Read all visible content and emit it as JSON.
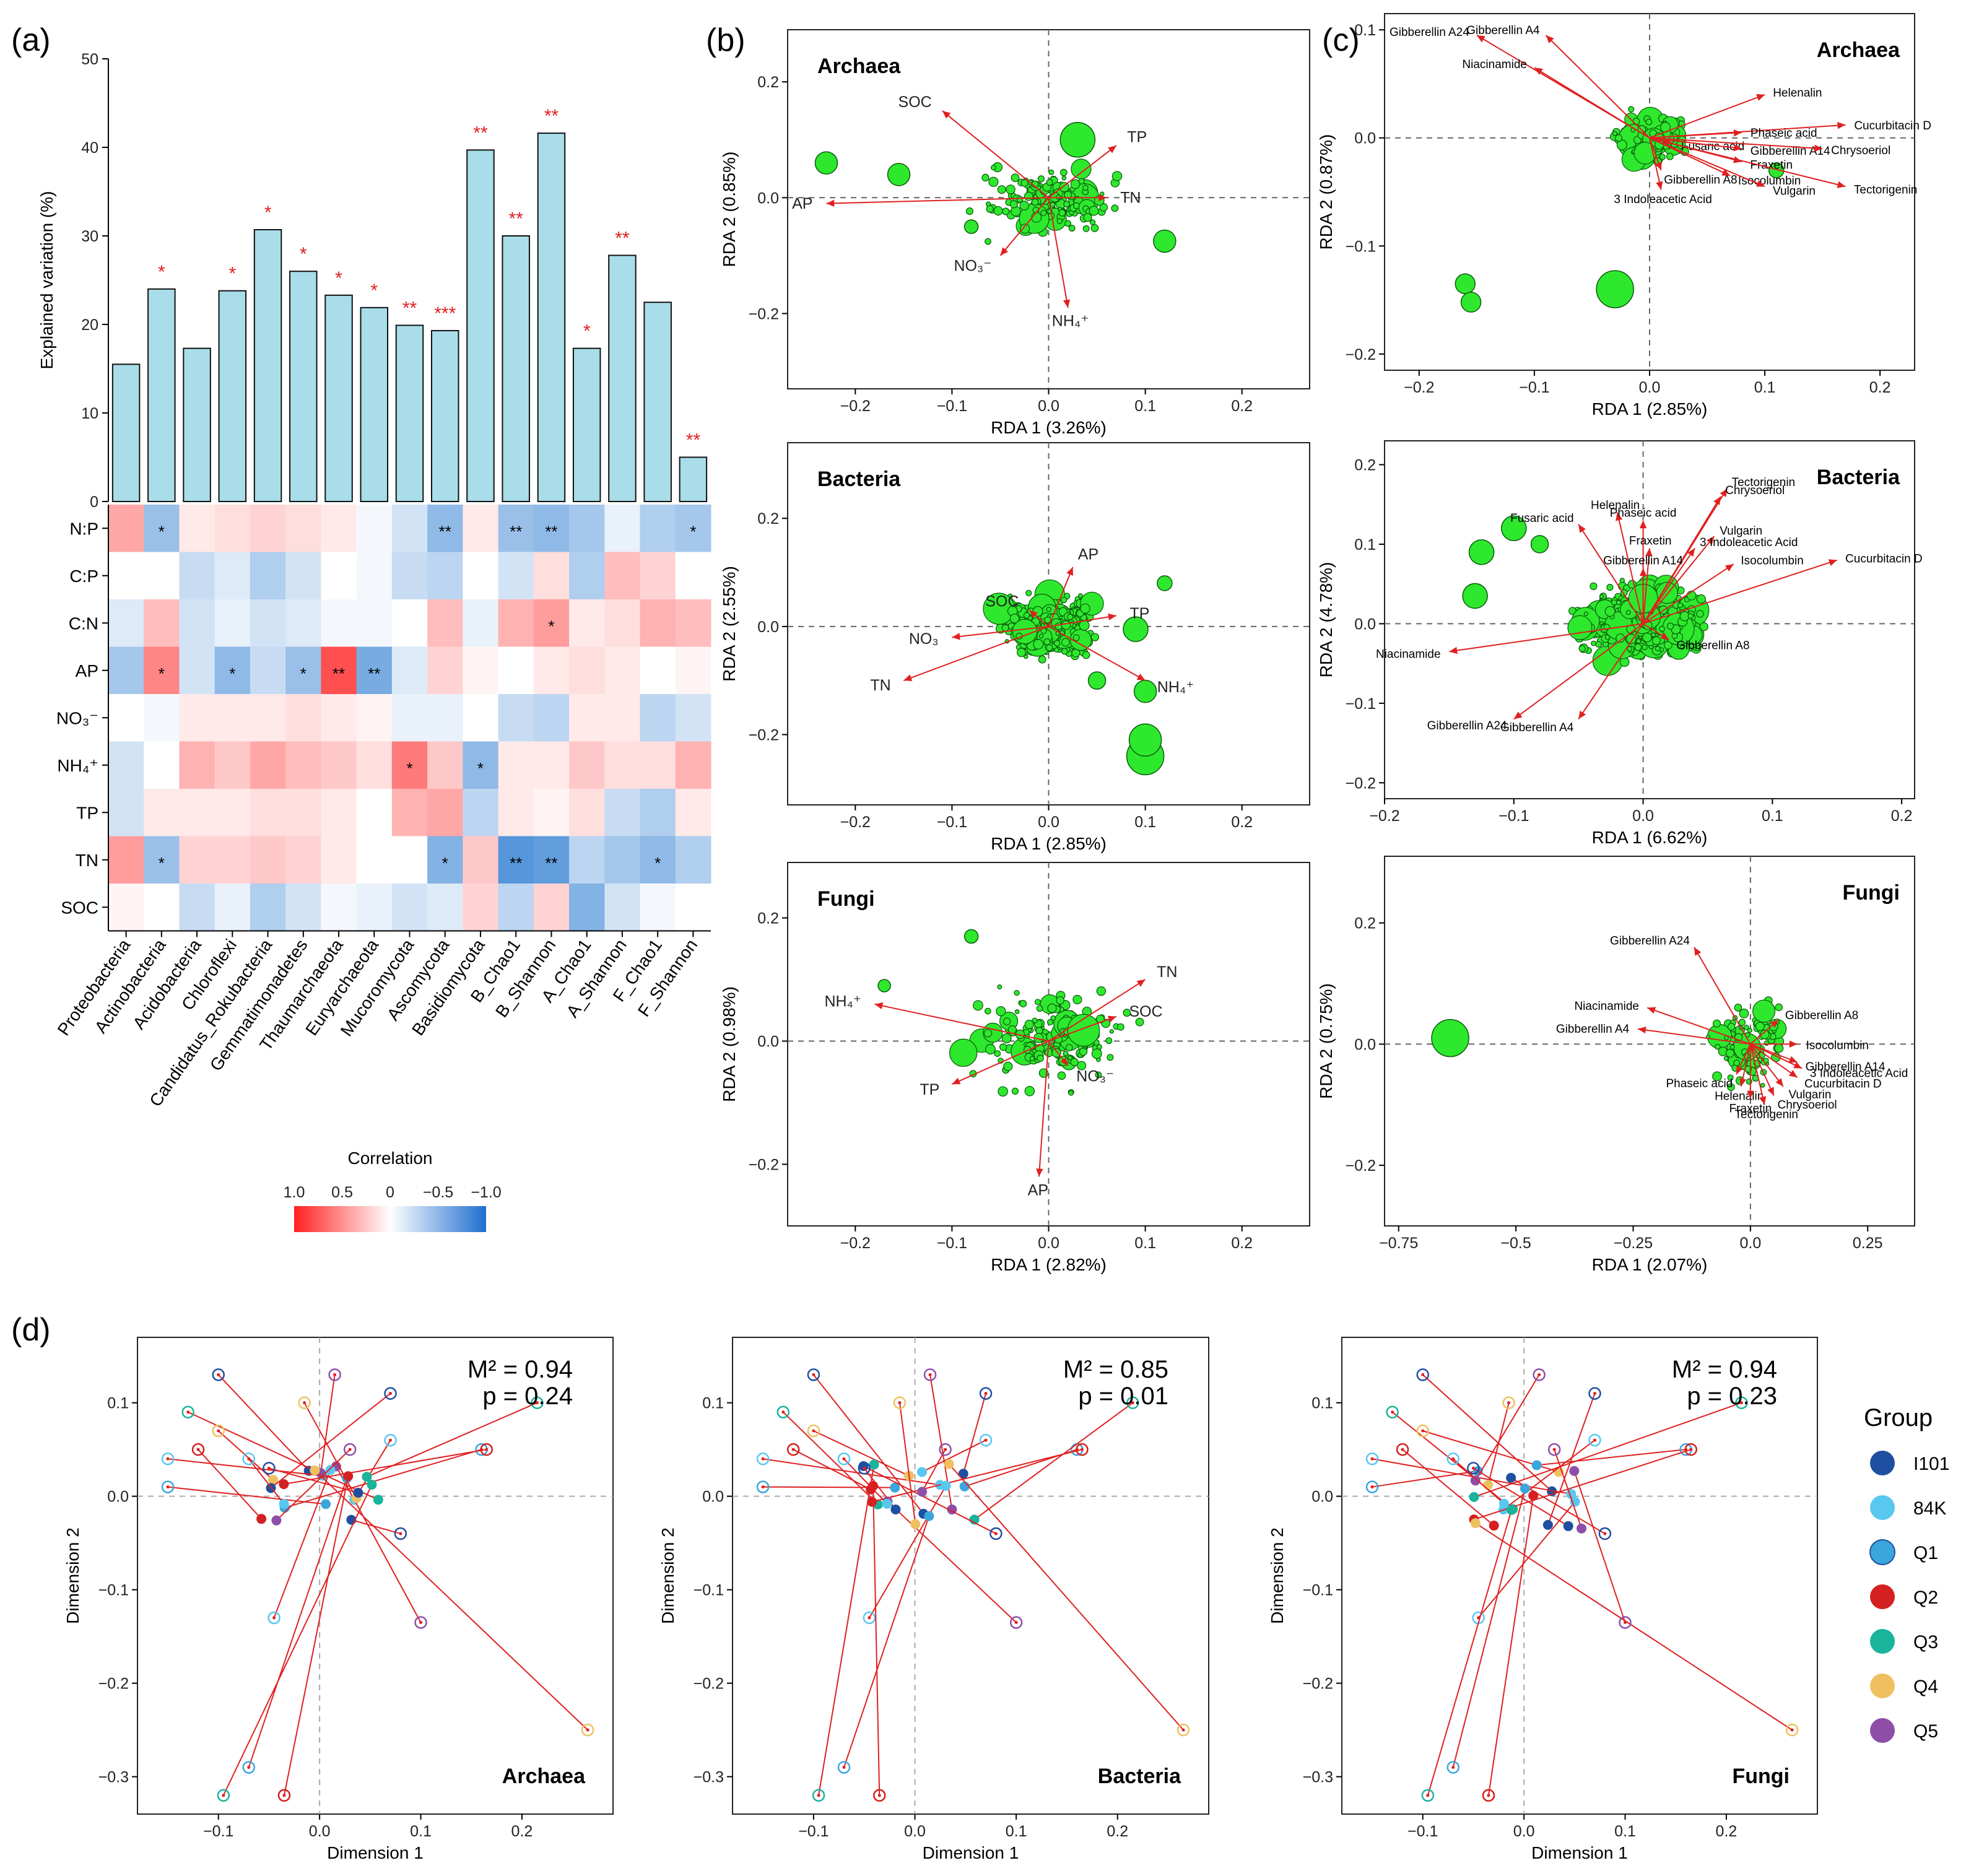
{
  "panel_labels": [
    "(a)",
    "(b)",
    "(c)",
    "(d)"
  ],
  "chart_data": [
    {
      "id": "a_bar",
      "type": "bar",
      "ylabel": "Explained variation (%)",
      "ylim": [
        0,
        50
      ],
      "yticks": [
        0,
        10,
        20,
        30,
        40,
        50
      ],
      "categories": [
        "Proteobacteria",
        "Actinobacteria",
        "Acidobacteria",
        "Chloroflexi",
        "Candidatus_Rokubacteria",
        "Gemmatimonadetes",
        "Thaumarchaeota",
        "Euryarchaeota",
        "Mucoromycota",
        "Ascomycota",
        "Basidiomycota",
        "B_Chao1",
        "B_Shannon",
        "A_Chao1",
        "A_Shannon",
        "F_Chao1",
        "F_Shannon"
      ],
      "values": [
        15.5,
        24,
        17.3,
        23.8,
        30.7,
        26,
        23.3,
        21.9,
        19.9,
        19.3,
        39.7,
        30,
        41.6,
        17.3,
        27.8,
        22.5,
        5
      ],
      "significance": [
        "",
        "*",
        "",
        "*",
        "*",
        "*",
        "*",
        "*",
        "**",
        "***",
        "**",
        "**",
        "**",
        "*",
        "**",
        "",
        "**"
      ]
    },
    {
      "id": "a_heatmap",
      "type": "heatmap",
      "rows": [
        "N:P",
        "C:P",
        "C:N",
        "AP",
        "NO₃⁻",
        "NH₄⁺",
        "TP",
        "TN",
        "SOC"
      ],
      "columns": [
        "Proteobacteria",
        "Actinobacteria",
        "Acidobacteria",
        "Chloroflexi",
        "Candidatus_Rokubacteria",
        "Gemmatimonadetes",
        "Thaumarchaeota",
        "Euryarchaeota",
        "Mucoromycota",
        "Ascomycota",
        "Basidiomycota",
        "B_Chao1",
        "B_Shannon",
        "A_Chao1",
        "A_Shannon",
        "F_Chao1",
        "F_Shannon"
      ],
      "values": [
        [
          0.4,
          -0.45,
          0.1,
          0.15,
          0.2,
          0.15,
          0.1,
          -0.05,
          -0.2,
          -0.5,
          0.1,
          -0.45,
          -0.5,
          -0.4,
          -0.1,
          -0.35,
          -0.4
        ],
        [
          0.0,
          0.0,
          -0.25,
          -0.15,
          -0.35,
          -0.2,
          0.0,
          -0.05,
          -0.25,
          -0.3,
          0.0,
          -0.2,
          0.15,
          -0.35,
          0.3,
          0.2,
          0.0
        ],
        [
          -0.15,
          0.3,
          -0.2,
          -0.1,
          -0.2,
          -0.15,
          -0.05,
          -0.05,
          0.0,
          0.3,
          -0.1,
          0.35,
          0.45,
          0.1,
          0.15,
          0.35,
          0.3
        ],
        [
          -0.4,
          0.55,
          -0.2,
          -0.5,
          -0.25,
          -0.45,
          0.8,
          -0.6,
          -0.15,
          0.2,
          0.05,
          0.0,
          0.1,
          0.15,
          0.1,
          0.0,
          0.05
        ],
        [
          0.0,
          -0.05,
          0.1,
          0.1,
          0.1,
          0.15,
          0.1,
          0.05,
          -0.1,
          -0.1,
          0.0,
          -0.25,
          -0.3,
          0.1,
          0.1,
          -0.3,
          -0.2
        ],
        [
          -0.2,
          0.0,
          0.35,
          0.25,
          0.4,
          0.3,
          0.25,
          0.15,
          0.6,
          0.25,
          -0.5,
          0.1,
          0.1,
          0.25,
          0.15,
          0.15,
          0.35
        ],
        [
          -0.2,
          0.1,
          0.1,
          0.1,
          0.15,
          0.15,
          0.1,
          0.0,
          0.35,
          0.4,
          -0.3,
          0.1,
          0.05,
          0.15,
          -0.25,
          -0.35,
          0.1
        ],
        [
          0.45,
          -0.45,
          0.2,
          0.2,
          0.25,
          0.2,
          0.1,
          0.0,
          0.0,
          -0.55,
          0.25,
          -0.75,
          -0.7,
          -0.3,
          -0.4,
          -0.5,
          -0.35
        ],
        [
          0.05,
          0.0,
          -0.25,
          -0.1,
          -0.35,
          -0.2,
          -0.05,
          -0.1,
          -0.2,
          -0.15,
          0.2,
          -0.3,
          0.2,
          -0.55,
          -0.2,
          -0.05,
          0.0
        ]
      ],
      "significance": [
        [
          "",
          "*",
          "",
          "",
          "",
          "",
          "",
          "",
          "",
          "**",
          "",
          "**",
          "**",
          "",
          "",
          "",
          "*"
        ],
        [
          "",
          "",
          "",
          "",
          "",
          "",
          "",
          "",
          "",
          "",
          "",
          "",
          "",
          "",
          "",
          "",
          ""
        ],
        [
          "",
          "",
          "",
          "",
          "",
          "",
          "",
          "",
          "",
          "",
          "",
          "",
          "*",
          "",
          "",
          "",
          ""
        ],
        [
          "",
          "*",
          "",
          "*",
          "",
          "*",
          "**",
          "**",
          "",
          "",
          "",
          "",
          "",
          "",
          "",
          "",
          ""
        ],
        [
          "",
          "",
          "",
          "",
          "",
          "",
          "",
          "",
          "",
          "",
          "",
          "",
          "",
          "",
          "",
          "",
          ""
        ],
        [
          "",
          "",
          "",
          "",
          "",
          "",
          "",
          "",
          "*",
          "",
          "*",
          "",
          "",
          "",
          "",
          "",
          ""
        ],
        [
          "",
          "",
          "",
          "",
          "",
          "",
          "",
          "",
          "",
          "",
          "",
          "",
          "",
          "",
          "",
          "",
          ""
        ],
        [
          "",
          "*",
          "",
          "",
          "",
          "",
          "",
          "",
          "",
          "*",
          "",
          "**",
          "**",
          "",
          "",
          "*",
          ""
        ],
        [
          "",
          "",
          "",
          "",
          "",
          "",
          "",
          "",
          "",
          "",
          "",
          "",
          "",
          "",
          "",
          "",
          ""
        ]
      ],
      "legend_title": "Correlation",
      "legend_ticks": [
        "1.0",
        "0.5",
        "0",
        "−0.5",
        "−1.0"
      ],
      "colors": [
        "#ff2020",
        "#ffffff",
        "#1f6fd0"
      ]
    },
    {
      "id": "b1",
      "type": "scatter",
      "title": "Archaea",
      "xlabel": "RDA 1 (3.26%)",
      "ylabel": "RDA 2 (0.85%)",
      "xlim": [
        -0.27,
        0.27
      ],
      "ylim": [
        -0.33,
        0.29
      ],
      "xticks": [
        -0.2,
        -0.1,
        0.0,
        0.1,
        0.2
      ],
      "yticks": [
        -0.2,
        0.0,
        0.2
      ],
      "vectors": [
        {
          "name": "SOC",
          "x": -0.11,
          "y": 0.15
        },
        {
          "name": "TP",
          "x": 0.07,
          "y": 0.09
        },
        {
          "name": "AP",
          "x": -0.23,
          "y": -0.01
        },
        {
          "name": "TN",
          "x": 0.06,
          "y": 0.0
        },
        {
          "name": "NO₃⁻",
          "x": -0.05,
          "y": -0.1
        },
        {
          "name": "NH₄⁺",
          "x": 0.02,
          "y": -0.19
        }
      ]
    },
    {
      "id": "b2",
      "type": "scatter",
      "title": "Bacteria",
      "xlabel": "RDA 1 (2.85%)",
      "ylabel": "RDA 2 (2.55%)",
      "xlim": [
        -0.27,
        0.27
      ],
      "ylim": [
        -0.33,
        0.34
      ],
      "xticks": [
        -0.2,
        -0.1,
        0.0,
        0.1,
        0.2
      ],
      "yticks": [
        -0.2,
        0.0,
        0.2
      ],
      "vectors": [
        {
          "name": "AP",
          "x": 0.025,
          "y": 0.11
        },
        {
          "name": "SOC",
          "x": -0.02,
          "y": 0.03
        },
        {
          "name": "TP",
          "x": 0.07,
          "y": 0.02
        },
        {
          "name": "NO₃",
          "x": -0.1,
          "y": -0.02
        },
        {
          "name": "TN",
          "x": -0.15,
          "y": -0.1
        },
        {
          "name": "NH₄⁺",
          "x": 0.1,
          "y": -0.1
        }
      ]
    },
    {
      "id": "b3",
      "type": "scatter",
      "title": "Fungi",
      "xlabel": "RDA 1 (2.82%)",
      "ylabel": "RDA 2 (0.98%)",
      "xlim": [
        -0.27,
        0.27
      ],
      "ylim": [
        -0.3,
        0.29
      ],
      "xticks": [
        -0.2,
        -0.1,
        0.0,
        0.1,
        0.2
      ],
      "yticks": [
        -0.2,
        0.0,
        0.2
      ],
      "vectors": [
        {
          "name": "NH₄⁺",
          "x": -0.18,
          "y": 0.06
        },
        {
          "name": "TN",
          "x": 0.1,
          "y": 0.1
        },
        {
          "name": "SOC",
          "x": 0.07,
          "y": 0.04
        },
        {
          "name": "TP",
          "x": -0.1,
          "y": -0.07
        },
        {
          "name": "NO₃⁻",
          "x": 0.02,
          "y": -0.04
        },
        {
          "name": "AP",
          "x": -0.01,
          "y": -0.22
        }
      ]
    },
    {
      "id": "c1",
      "type": "scatter",
      "title": "Archaea",
      "xlabel": "RDA 1 (2.85%)",
      "ylabel": "RDA 2 (0.87%)",
      "xlim": [
        -0.23,
        0.23
      ],
      "ylim": [
        -0.215,
        0.115
      ],
      "xticks": [
        -0.2,
        -0.1,
        0.0,
        0.1,
        0.2
      ],
      "yticks": [
        -0.2,
        -0.1,
        0.0,
        0.1
      ],
      "vectors": [
        {
          "name": "Gibberellin A24",
          "x": -0.15,
          "y": 0.095
        },
        {
          "name": "Gibberellin A4",
          "x": -0.09,
          "y": 0.095
        },
        {
          "name": "Niacinamide",
          "x": -0.1,
          "y": 0.065
        },
        {
          "name": "Helenalin",
          "x": 0.1,
          "y": 0.04
        },
        {
          "name": "Cucurbitacin D",
          "x": 0.17,
          "y": 0.012
        },
        {
          "name": "Phaseic acid",
          "x": 0.08,
          "y": 0.005
        },
        {
          "name": "Fusaric acid",
          "x": 0.02,
          "y": -0.005
        },
        {
          "name": "Gibberellin A14",
          "x": 0.08,
          "y": -0.01
        },
        {
          "name": "Chrysoeriol",
          "x": 0.15,
          "y": -0.01
        },
        {
          "name": "Fraxetin",
          "x": 0.08,
          "y": -0.022
        },
        {
          "name": "Gibberellin A8",
          "x": 0.01,
          "y": -0.03
        },
        {
          "name": "Isocolumbin",
          "x": 0.07,
          "y": -0.035
        },
        {
          "name": "Vulgarin",
          "x": 0.1,
          "y": -0.045
        },
        {
          "name": "Tectorigenin",
          "x": 0.17,
          "y": -0.045
        },
        {
          "name": "3 Indoleacetic Acid",
          "x": 0.01,
          "y": -0.048
        }
      ]
    },
    {
      "id": "c2",
      "type": "scatter",
      "title": "Bacteria",
      "xlabel": "RDA 1 (6.62%)",
      "ylabel": "RDA 2 (4.78%)",
      "xlim": [
        -0.2,
        0.21
      ],
      "ylim": [
        -0.22,
        0.23
      ],
      "xticks": [
        -0.2,
        -0.1,
        0.0,
        0.1,
        0.2
      ],
      "yticks": [
        -0.2,
        -0.1,
        0.0,
        0.1,
        0.2
      ],
      "vectors": [
        {
          "name": "Tectorigenin",
          "x": 0.065,
          "y": 0.17
        },
        {
          "name": "Chrysoeriol",
          "x": 0.06,
          "y": 0.16
        },
        {
          "name": "Helenalin",
          "x": -0.02,
          "y": 0.14
        },
        {
          "name": "Fusaric acid",
          "x": -0.05,
          "y": 0.125
        },
        {
          "name": "Phaseic acid",
          "x": 0.0,
          "y": 0.13
        },
        {
          "name": "Vulgarin",
          "x": 0.055,
          "y": 0.11
        },
        {
          "name": "Fraxetin",
          "x": 0.005,
          "y": 0.095
        },
        {
          "name": "3 Indoleacetic Acid",
          "x": 0.04,
          "y": 0.095
        },
        {
          "name": "Gibberellin A14",
          "x": 0.0,
          "y": 0.07
        },
        {
          "name": "Isocolumbin",
          "x": 0.07,
          "y": 0.075
        },
        {
          "name": "Cucurbitacin D",
          "x": 0.15,
          "y": 0.08
        },
        {
          "name": "Niacinamide",
          "x": -0.15,
          "y": -0.035
        },
        {
          "name": "Gibberellin A8",
          "x": 0.02,
          "y": -0.02
        },
        {
          "name": "Gibberellin A24",
          "x": -0.1,
          "y": -0.12
        },
        {
          "name": "Gibberellin A4",
          "x": -0.05,
          "y": -0.12
        }
      ]
    },
    {
      "id": "c3",
      "type": "scatter",
      "title": "Fungi",
      "xlabel": "RDA 1 (2.07%)",
      "ylabel": "RDA 2 (0.75%)",
      "xlim": [
        -0.78,
        0.35
      ],
      "ylim": [
        -0.3,
        0.31
      ],
      "xticks": [
        -0.75,
        -0.5,
        -0.25,
        0.0,
        0.25
      ],
      "yticks": [
        -0.2,
        0.0,
        0.2
      ],
      "vectors": [
        {
          "name": "Gibberellin A24",
          "x": -0.12,
          "y": 0.16
        },
        {
          "name": "Niacinamide",
          "x": -0.22,
          "y": 0.06
        },
        {
          "name": "Gibberellin A4",
          "x": -0.24,
          "y": 0.025
        },
        {
          "name": "Gibberellin A8",
          "x": 0.06,
          "y": 0.04
        },
        {
          "name": "Isocolumbin",
          "x": 0.1,
          "y": 0.0
        },
        {
          "name": "Gibberellin A14",
          "x": 0.1,
          "y": -0.03
        },
        {
          "name": "3 Indoleacetic Acid",
          "x": 0.11,
          "y": -0.04
        },
        {
          "name": "Cucurbitacin D",
          "x": 0.1,
          "y": -0.055
        },
        {
          "name": "Phaseic acid",
          "x": -0.03,
          "y": -0.05
        },
        {
          "name": "Helenalin",
          "x": -0.02,
          "y": -0.07
        },
        {
          "name": "Vulgarin",
          "x": 0.07,
          "y": -0.07
        },
        {
          "name": "Fraxetin",
          "x": 0.0,
          "y": -0.09
        },
        {
          "name": "Chrysoeriol",
          "x": 0.05,
          "y": -0.085
        },
        {
          "name": "Tectorigenin",
          "x": 0.03,
          "y": -0.1
        }
      ]
    },
    {
      "id": "d1",
      "type": "scatter",
      "title": "Archaea",
      "xlabel": "Dimension 1",
      "ylabel": "Dimension 2",
      "xlim": [
        -0.18,
        0.29
      ],
      "ylim": [
        -0.34,
        0.17
      ],
      "xticks": [
        -0.1,
        0.0,
        0.1,
        0.2
      ],
      "yticks": [
        -0.3,
        -0.2,
        -0.1,
        0.0,
        0.1
      ],
      "stat_M": "M² = 0.94",
      "stat_p": "p = 0.24"
    },
    {
      "id": "d2",
      "type": "scatter",
      "title": "Bacteria",
      "xlabel": "Dimension 1",
      "ylabel": "Dimension 2",
      "xlim": [
        -0.18,
        0.29
      ],
      "ylim": [
        -0.34,
        0.17
      ],
      "xticks": [
        -0.1,
        0.0,
        0.1,
        0.2
      ],
      "yticks": [
        -0.3,
        -0.2,
        -0.1,
        0.0,
        0.1
      ],
      "stat_M": "M² = 0.85",
      "stat_p": "p = 0.01"
    },
    {
      "id": "d3",
      "type": "scatter",
      "title": "Fungi",
      "xlabel": "Dimension 1",
      "ylabel": "Dimension 2",
      "xlim": [
        -0.18,
        0.29
      ],
      "ylim": [
        -0.34,
        0.17
      ],
      "xticks": [
        -0.1,
        0.0,
        0.1,
        0.2
      ],
      "yticks": [
        -0.3,
        -0.2,
        -0.1,
        0.0,
        0.1
      ],
      "stat_M": "M² = 0.94",
      "stat_p": "p = 0.23"
    }
  ],
  "group_legend": {
    "title": "Group",
    "items": [
      {
        "name": "I101",
        "color": "#1f4fa0"
      },
      {
        "name": "84K",
        "color": "#58c8f0"
      },
      {
        "name": "Q1",
        "color": "#3aa6dc"
      },
      {
        "name": "Q2",
        "color": "#d42020"
      },
      {
        "name": "Q3",
        "color": "#1ab39c"
      },
      {
        "name": "Q4",
        "color": "#f0c060"
      },
      {
        "name": "Q5",
        "color": "#8e4ea8"
      }
    ]
  }
}
